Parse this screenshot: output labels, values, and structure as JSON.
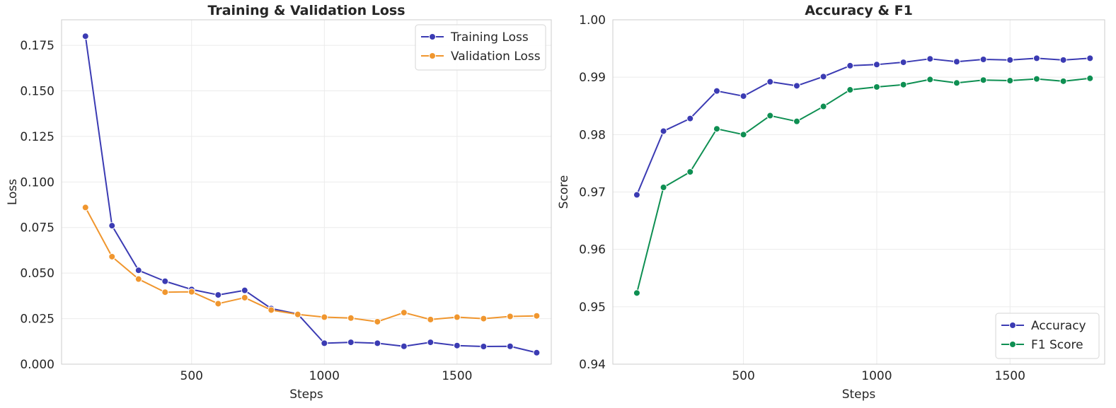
{
  "chart_data": [
    {
      "type": "line",
      "title": "Training & Validation Loss",
      "xlabel": "Steps",
      "ylabel": "Loss",
      "xlim": [
        10,
        1855
      ],
      "ylim": [
        0,
        0.189
      ],
      "xticks": [
        500,
        1000,
        1500
      ],
      "yticks": [
        0.0,
        0.025,
        0.05,
        0.075,
        0.1,
        0.125,
        0.15,
        0.175
      ],
      "ytick_labels": [
        "0.000",
        "0.025",
        "0.050",
        "0.075",
        "0.100",
        "0.125",
        "0.150",
        "0.175"
      ],
      "grid": true,
      "legend": "upper right",
      "x": [
        100,
        200,
        300,
        400,
        500,
        600,
        700,
        800,
        900,
        1000,
        1100,
        1200,
        1300,
        1400,
        1500,
        1600,
        1700,
        1800
      ],
      "series": [
        {
          "name": "Training Loss",
          "color": "#3b3bb3",
          "values": [
            0.18,
            0.076,
            0.0515,
            0.0455,
            0.041,
            0.038,
            0.0405,
            0.0305,
            0.0275,
            0.0115,
            0.012,
            0.0115,
            0.0098,
            0.012,
            0.0102,
            0.0097,
            0.0098,
            0.0063
          ]
        },
        {
          "name": "Validation Loss",
          "color": "#f0962e",
          "values": [
            0.086,
            0.059,
            0.0467,
            0.0395,
            0.0397,
            0.0332,
            0.0365,
            0.0297,
            0.0273,
            0.0258,
            0.0253,
            0.0233,
            0.0283,
            0.0245,
            0.0258,
            0.025,
            0.0262,
            0.0265
          ]
        }
      ]
    },
    {
      "type": "line",
      "title": "Accuracy & F1",
      "xlabel": "Steps",
      "ylabel": "Score",
      "xlim": [
        10,
        1855
      ],
      "ylim": [
        0.94,
        1.0
      ],
      "xticks": [
        500,
        1000,
        1500
      ],
      "yticks": [
        0.94,
        0.95,
        0.96,
        0.97,
        0.98,
        0.99,
        1.0
      ],
      "ytick_labels": [
        "0.94",
        "0.95",
        "0.96",
        "0.97",
        "0.98",
        "0.99",
        "1.00"
      ],
      "grid": true,
      "legend": "lower right",
      "x": [
        100,
        200,
        300,
        400,
        500,
        600,
        700,
        800,
        900,
        1000,
        1100,
        1200,
        1300,
        1400,
        1500,
        1600,
        1700,
        1800
      ],
      "series": [
        {
          "name": "Accuracy",
          "color": "#3b3bb3",
          "values": [
            0.9695,
            0.9806,
            0.9828,
            0.9876,
            0.9867,
            0.9892,
            0.9885,
            0.9901,
            0.992,
            0.9922,
            0.9926,
            0.9932,
            0.9927,
            0.9931,
            0.993,
            0.9933,
            0.993,
            0.9933
          ]
        },
        {
          "name": "F1 Score",
          "color": "#0e8f52",
          "values": [
            0.9524,
            0.9708,
            0.9735,
            0.981,
            0.98,
            0.9833,
            0.9823,
            0.9849,
            0.9878,
            0.9883,
            0.9887,
            0.9896,
            0.989,
            0.9895,
            0.9894,
            0.9897,
            0.9893,
            0.9898
          ]
        }
      ]
    }
  ]
}
